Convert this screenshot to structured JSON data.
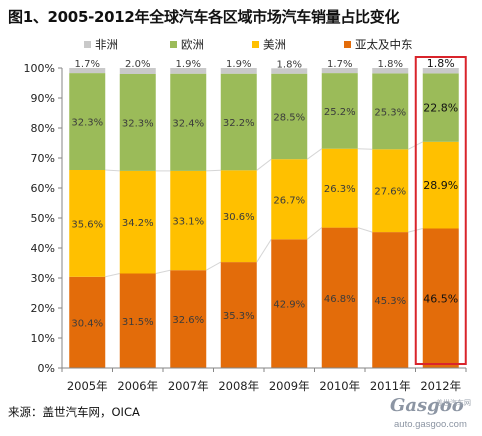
{
  "title": "图1、2005-2012年全球汽车各区域市场汽车销量占比变化",
  "source": "来源：盖世汽车网，OICA",
  "watermark": {
    "logo": "Gasgoo",
    "url": "auto.gasgoo.com",
    "cn": "盖世汽车网"
  },
  "colors": {
    "非洲": "#c9c9c9",
    "欧洲": "#9bbb59",
    "美洲": "#ffc000",
    "亚太及中东": "#e36c0a",
    "highlight": "#d9242b",
    "trend": "#d6d6d6"
  },
  "chart_data": {
    "type": "bar",
    "stacked": true,
    "categories": [
      "2005年",
      "2006年",
      "2007年",
      "2008年",
      "2009年",
      "2010年",
      "2011年",
      "2012年"
    ],
    "series": [
      {
        "name": "亚太及中东",
        "values": [
          30.4,
          31.5,
          32.6,
          35.3,
          42.9,
          46.8,
          45.3,
          46.5
        ],
        "labels": [
          "30.4%",
          "31.5%",
          "32.6%",
          "35.3%",
          "42.9%",
          "46.8%",
          "45.3%",
          "46.5%"
        ]
      },
      {
        "name": "美洲",
        "values": [
          35.6,
          34.2,
          33.1,
          30.6,
          26.7,
          26.3,
          27.6,
          28.9
        ],
        "labels": [
          "35.6%",
          "34.2%",
          "33.1%",
          "30.6%",
          "26.7%",
          "26.3%",
          "27.6%",
          "28.9%"
        ]
      },
      {
        "name": "欧洲",
        "values": [
          32.3,
          32.3,
          32.4,
          32.2,
          28.5,
          25.2,
          25.3,
          22.8
        ],
        "labels": [
          "32.3%",
          "32.3%",
          "32.4%",
          "32.2%",
          "28.5%",
          "25.2%",
          "25.3%",
          "22.8%"
        ]
      },
      {
        "name": "非洲",
        "values": [
          1.7,
          2.0,
          1.9,
          1.9,
          1.8,
          1.7,
          1.8,
          1.8
        ],
        "labels": [
          "1.7%",
          "2.0%",
          "1.9%",
          "1.9%",
          "1.8%",
          "1.7%",
          "1.8%",
          "1.8%"
        ]
      }
    ],
    "legend_order": [
      "非洲",
      "欧洲",
      "美洲",
      "亚太及中东"
    ],
    "legend_position": "top",
    "yticks": [
      "0%",
      "10%",
      "20%",
      "30%",
      "40%",
      "50%",
      "60%",
      "70%",
      "80%",
      "90%",
      "100%"
    ],
    "ylim": [
      0,
      100
    ],
    "grid": false,
    "highlighted_category": "2012年"
  }
}
